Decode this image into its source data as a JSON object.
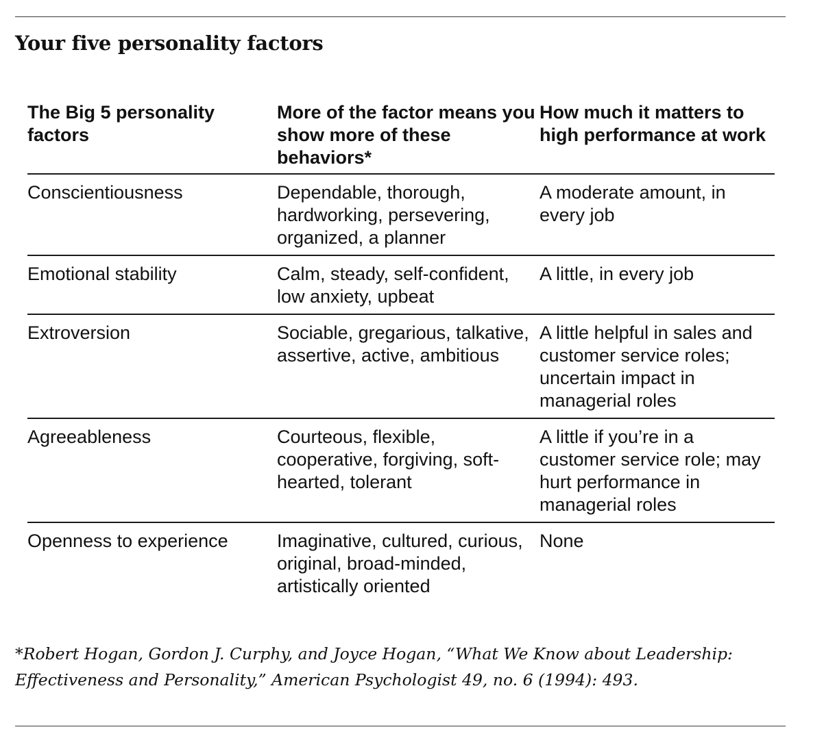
{
  "heading": "Your five personality factors",
  "table": {
    "headers": [
      "The Big 5 personality factors",
      "More of the factor means you show more of these behaviors*",
      "How much it matters to high performance at work"
    ],
    "rows": [
      {
        "factor": "Conscientiousness",
        "behaviors": "Dependable, thorough, hardworking, persevering, organized, a planner",
        "importance": "A moderate amount, in every job"
      },
      {
        "factor": "Emotional stability",
        "behaviors": "Calm, steady, self-confident, low anxiety, upbeat",
        "importance": "A little, in every job"
      },
      {
        "factor": "Extroversion",
        "behaviors": "Sociable, gregarious, talkative, assertive, active, ambitious",
        "importance": "A little helpful in sales and customer service roles; uncertain impact in managerial roles"
      },
      {
        "factor": "Agreeableness",
        "behaviors": "Courteous, flexible, cooperative, forgiving, soft-hearted, tolerant",
        "importance": "A little if you’re in a customer service role; may hurt performance in managerial roles"
      },
      {
        "factor": "Openness to experience",
        "behaviors": "Imaginative, cultured, curious, original, broad-minded, artistically oriented",
        "importance": "None"
      }
    ]
  },
  "footnote": "*Robert Hogan, Gordon J. Curphy, and Joyce Hogan, “What We Know about Leadership: Effectiveness and Personality,” American Psychologist 49, no. 6 (1994): 493."
}
